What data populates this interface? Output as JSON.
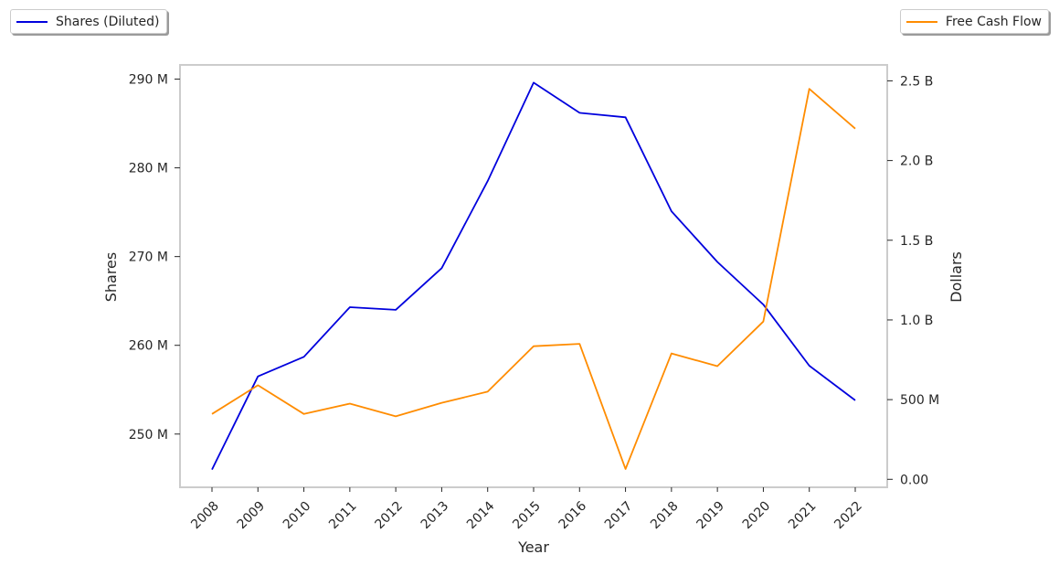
{
  "chart_data": {
    "type": "line",
    "xlabel": "Year",
    "ylabel_left": "Shares",
    "ylabel_right": "Dollars",
    "categories": [
      "2008",
      "2009",
      "2010",
      "2011",
      "2012",
      "2013",
      "2014",
      "2015",
      "2016",
      "2017",
      "2018",
      "2019",
      "2020",
      "2021",
      "2022"
    ],
    "series": [
      {
        "name": "Shares (Diluted)",
        "axis": "left",
        "color": "#0000dd",
        "values": [
          246.0,
          256.5,
          258.7,
          264.3,
          264.0,
          268.7,
          278.5,
          289.6,
          286.2,
          285.7,
          275.1,
          269.4,
          264.6,
          257.7,
          253.8
        ]
      },
      {
        "name": "Free Cash Flow",
        "axis": "right",
        "color": "#ff8c00",
        "values": [
          0.41,
          0.59,
          0.41,
          0.475,
          0.395,
          0.48,
          0.55,
          0.835,
          0.85,
          0.065,
          0.79,
          0.71,
          0.99,
          2.45,
          2.2
        ]
      }
    ],
    "ylim_left": [
      244,
      291.6
    ],
    "ylim_right": [
      -0.05,
      2.6
    ],
    "yticks_left": [
      {
        "value": 250,
        "label": "250 M"
      },
      {
        "value": 260,
        "label": "260 M"
      },
      {
        "value": 270,
        "label": "270 M"
      },
      {
        "value": 280,
        "label": "280 M"
      },
      {
        "value": 290,
        "label": "290 M"
      }
    ],
    "yticks_right": [
      {
        "value": 0,
        "label": "0.00"
      },
      {
        "value": 0.5,
        "label": "500 M"
      },
      {
        "value": 1.0,
        "label": "1.0 B"
      },
      {
        "value": 1.5,
        "label": "1.5 B"
      },
      {
        "value": 2.0,
        "label": "2.0 B"
      },
      {
        "value": 2.5,
        "label": "2.5 B"
      }
    ],
    "grid": false,
    "legend_left": "top-left",
    "legend_right": "top-right"
  }
}
